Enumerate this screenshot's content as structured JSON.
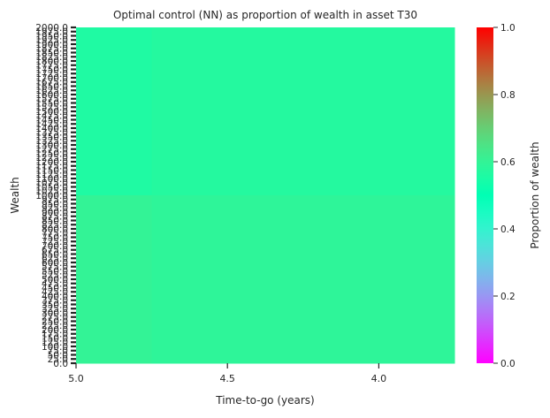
{
  "chart_data": {
    "type": "heatmap",
    "title": "Optimal control (NN) as proportion of wealth in asset T30",
    "xlabel": "Time-to-go (years)",
    "ylabel": "Wealth",
    "x_tick_labels": [
      "5.0",
      "4.5",
      "4.0"
    ],
    "x_tick_values": [
      5.0,
      4.5,
      4.0
    ],
    "x_range": [
      5.0,
      3.75
    ],
    "y_range": [
      0,
      2000
    ],
    "y_step": 25,
    "y_tick_label_step": 25,
    "y_tick_labels_visible": [
      "2000.0",
      "1850.0",
      "1750.0",
      "1650.0",
      "1550.0",
      "1450.0",
      "1350.0",
      "1250.0",
      "1150.0",
      "1100.0",
      "1050.0",
      "1025.0",
      "1000.0",
      "950.0",
      "850.0",
      "800.0",
      "750.0",
      "700.0",
      "650.0",
      "600.0",
      "550.0",
      "500.0",
      "450.0",
      "400.0",
      "350.0",
      "300.0",
      "250.0",
      "200.0",
      "150.0",
      "100.0",
      "50.0",
      "25.0",
      "0.0"
    ],
    "colorbar": {
      "label": "Proportion of wealth",
      "colormap": "rainbow",
      "range": [
        0,
        1
      ],
      "ticks": [
        "0.0",
        "0.2",
        "0.4",
        "0.6",
        "0.8",
        "1.0"
      ],
      "tick_values": [
        0.0,
        0.2,
        0.4,
        0.6,
        0.8,
        1.0
      ]
    },
    "regions": [
      {
        "wealth_range": [
          1000,
          2000
        ],
        "time_range": [
          5.0,
          4.75
        ],
        "value": 0.56
      },
      {
        "wealth_range": [
          1000,
          2000
        ],
        "time_range": [
          4.75,
          3.75
        ],
        "value": 0.57
      },
      {
        "wealth_range": [
          0,
          1000
        ],
        "time_range": [
          5.0,
          4.75
        ],
        "value": 0.6
      },
      {
        "wealth_range": [
          0,
          1000
        ],
        "time_range": [
          4.75,
          3.75
        ],
        "value": 0.59
      }
    ]
  }
}
